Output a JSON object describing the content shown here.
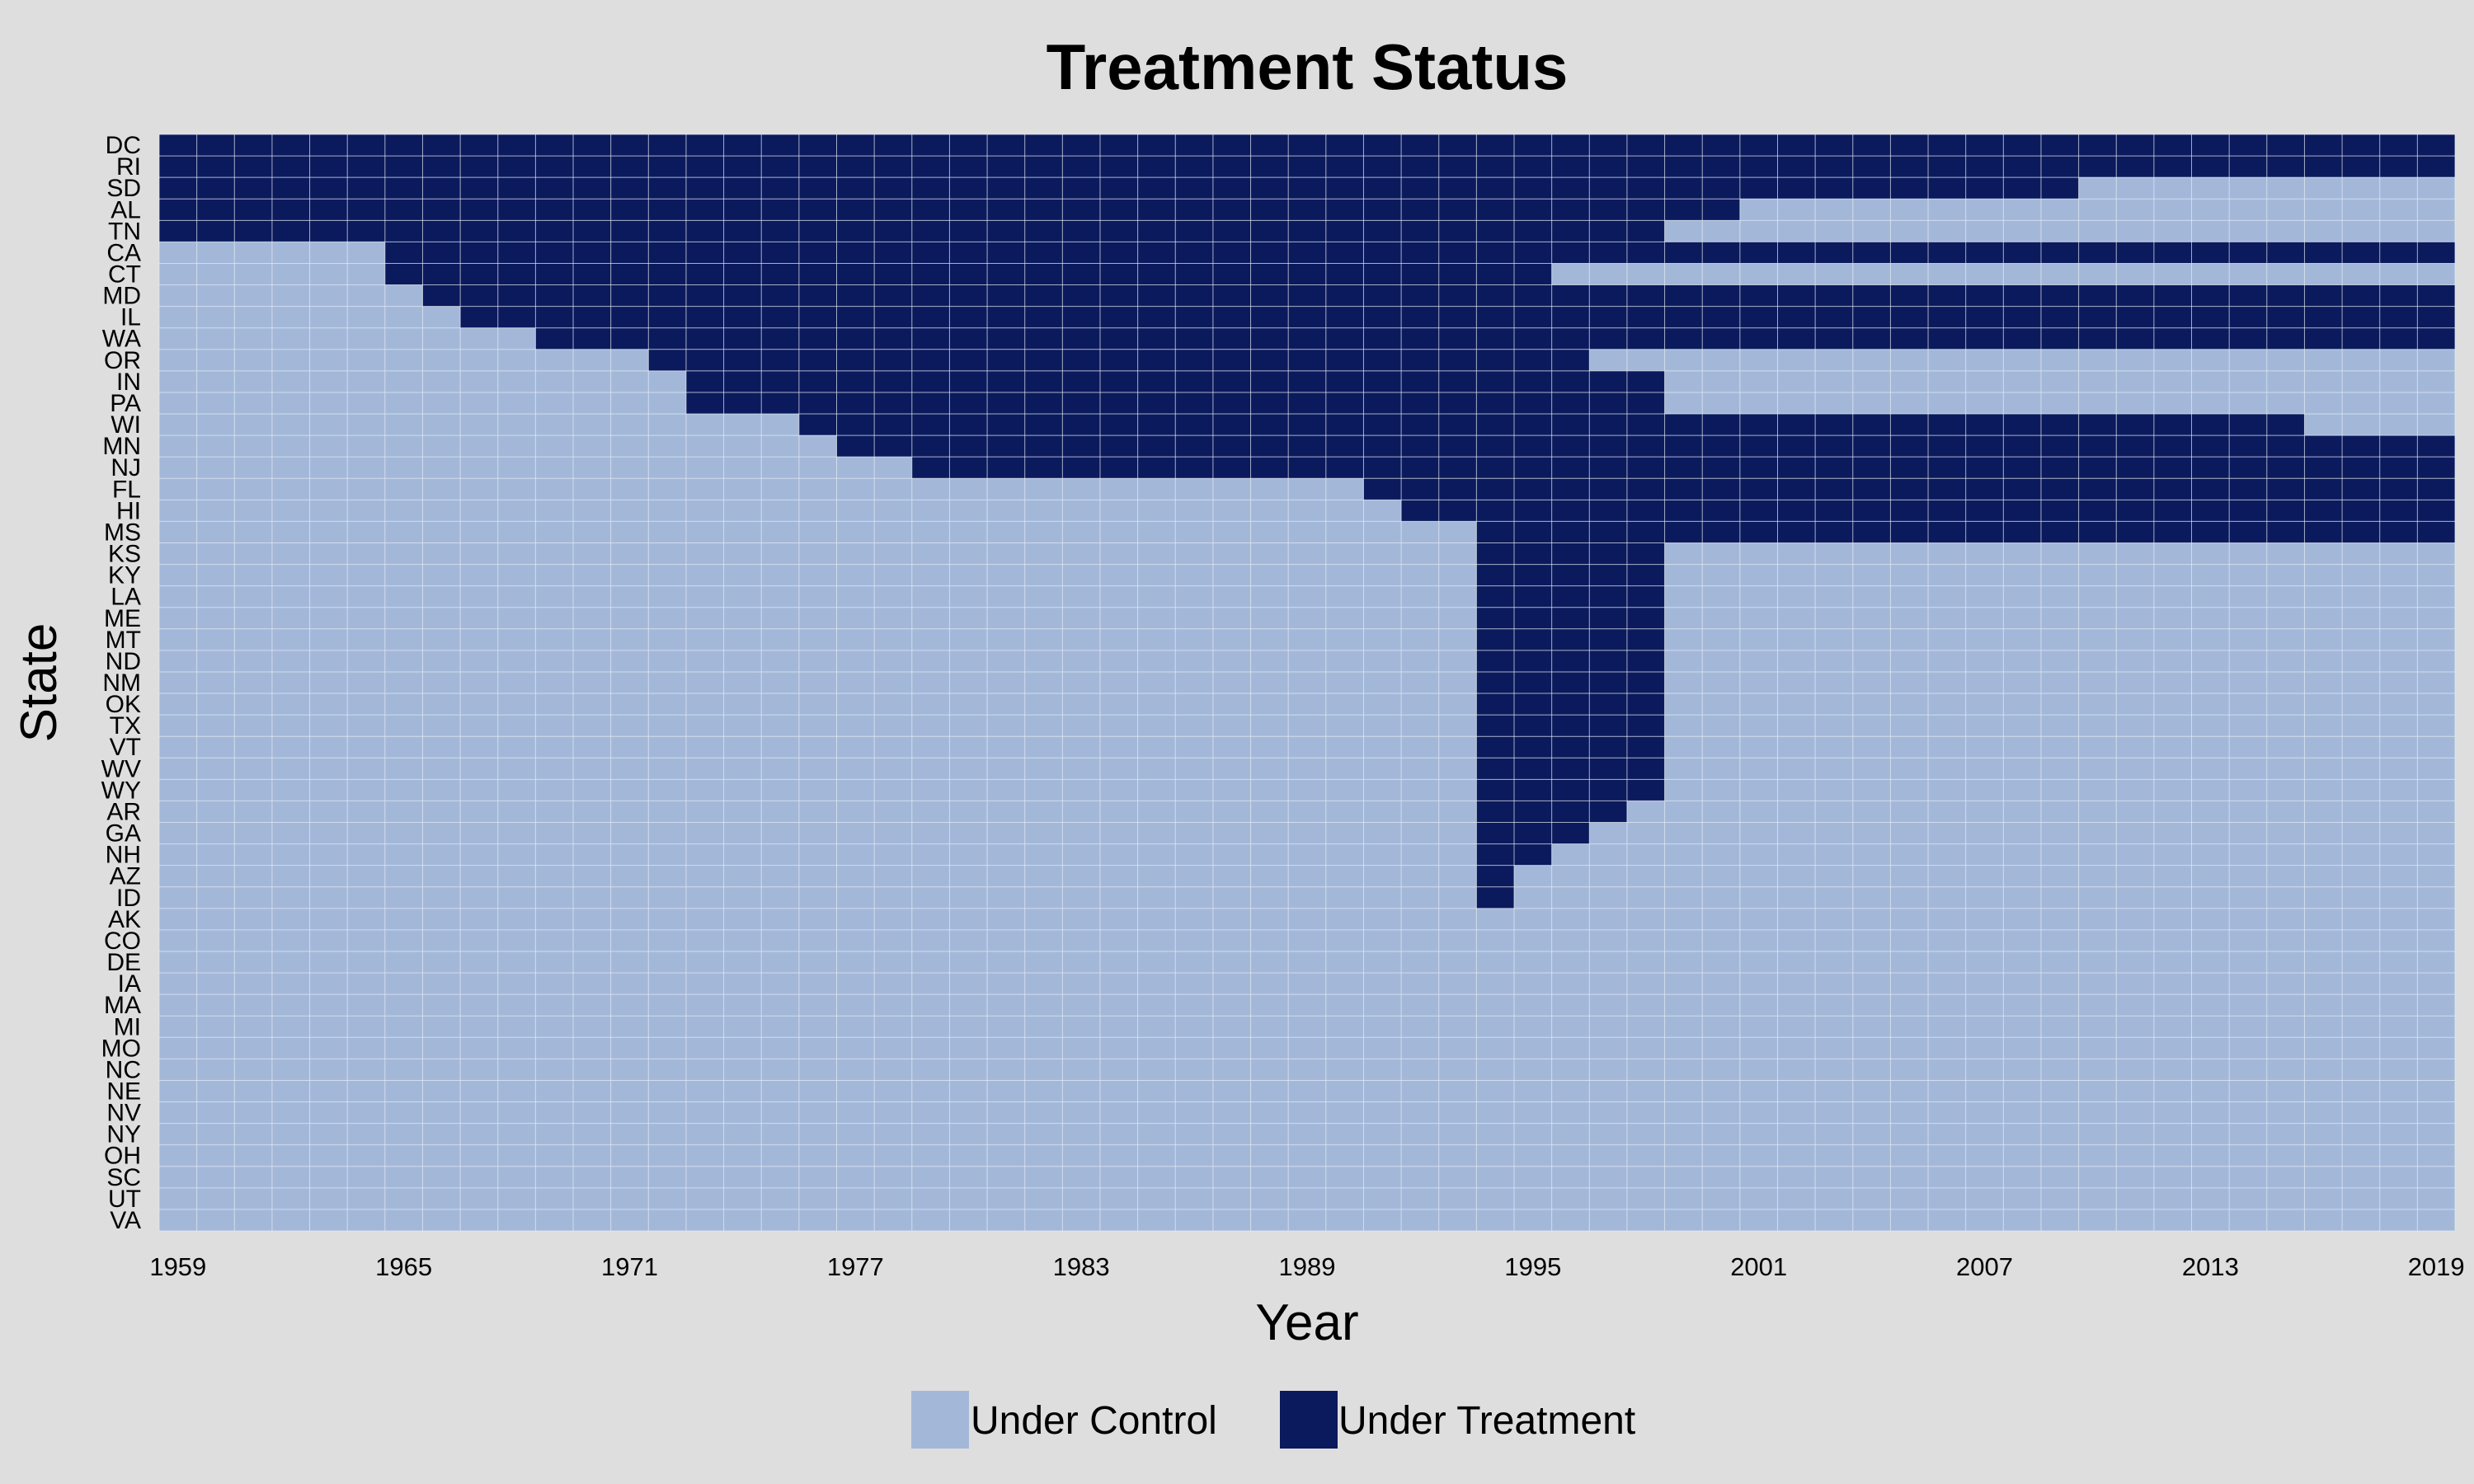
{
  "colors": {
    "background": "#dedede",
    "control": "#a3b8d9",
    "treatment": "#0b1a5c",
    "grid": "#e6ebf3",
    "text": "#000000"
  },
  "chart_data": {
    "type": "heatmap",
    "title": "Treatment Status",
    "xlabel": "Year",
    "ylabel": "State",
    "x_range": [
      1959,
      2019
    ],
    "x_ticks": [
      "1959",
      "1965",
      "1971",
      "1977",
      "1983",
      "1989",
      "1995",
      "2001",
      "2007",
      "2013",
      "2019"
    ],
    "states": [
      "DC",
      "RI",
      "SD",
      "AL",
      "TN",
      "CA",
      "CT",
      "MD",
      "IL",
      "WA",
      "OR",
      "IN",
      "PA",
      "WI",
      "MN",
      "NJ",
      "FL",
      "HI",
      "MS",
      "KS",
      "KY",
      "LA",
      "ME",
      "MT",
      "ND",
      "NM",
      "OK",
      "TX",
      "VT",
      "WV",
      "WY",
      "AR",
      "GA",
      "NH",
      "AZ",
      "ID",
      "AK",
      "CO",
      "DE",
      "IA",
      "MA",
      "MI",
      "MO",
      "NC",
      "NE",
      "NV",
      "NY",
      "OH",
      "SC",
      "UT",
      "VA"
    ],
    "treated_intervals": {
      "DC": [
        [
          1959,
          2019
        ]
      ],
      "RI": [
        [
          1959,
          2019
        ]
      ],
      "SD": [
        [
          1959,
          2009
        ]
      ],
      "AL": [
        [
          1959,
          2000
        ]
      ],
      "TN": [
        [
          1959,
          1998
        ]
      ],
      "CA": [
        [
          1965,
          2019
        ]
      ],
      "CT": [
        [
          1965,
          1995
        ]
      ],
      "MD": [
        [
          1966,
          2019
        ]
      ],
      "IL": [
        [
          1967,
          2019
        ]
      ],
      "WA": [
        [
          1969,
          2019
        ]
      ],
      "OR": [
        [
          1972,
          1996
        ]
      ],
      "IN": [
        [
          1973,
          1998
        ]
      ],
      "PA": [
        [
          1973,
          1998
        ]
      ],
      "WI": [
        [
          1976,
          2015
        ]
      ],
      "MN": [
        [
          1977,
          2019
        ]
      ],
      "NJ": [
        [
          1979,
          2019
        ]
      ],
      "FL": [
        [
          1991,
          2019
        ]
      ],
      "HI": [
        [
          1992,
          2019
        ]
      ],
      "MS": [
        [
          1994,
          2019
        ]
      ],
      "KS": [
        [
          1994,
          1998
        ]
      ],
      "KY": [
        [
          1994,
          1998
        ]
      ],
      "LA": [
        [
          1994,
          1998
        ]
      ],
      "ME": [
        [
          1994,
          1998
        ]
      ],
      "MT": [
        [
          1994,
          1998
        ]
      ],
      "ND": [
        [
          1994,
          1998
        ]
      ],
      "NM": [
        [
          1994,
          1998
        ]
      ],
      "OK": [
        [
          1994,
          1998
        ]
      ],
      "TX": [
        [
          1994,
          1998
        ]
      ],
      "VT": [
        [
          1994,
          1998
        ]
      ],
      "WV": [
        [
          1994,
          1998
        ]
      ],
      "WY": [
        [
          1994,
          1998
        ]
      ],
      "AR": [
        [
          1994,
          1997
        ]
      ],
      "GA": [
        [
          1994,
          1996
        ]
      ],
      "NH": [
        [
          1994,
          1995
        ]
      ],
      "AZ": [
        [
          1994,
          1994
        ]
      ],
      "ID": [
        [
          1994,
          1994
        ]
      ],
      "AK": [],
      "CO": [],
      "DE": [],
      "IA": [],
      "MA": [],
      "MI": [],
      "MO": [],
      "NC": [],
      "NE": [],
      "NV": [],
      "NY": [],
      "OH": [],
      "SC": [],
      "UT": [],
      "VA": []
    },
    "legend": {
      "position": "bottom",
      "items": [
        {
          "label": "Under Control",
          "color": "#a3b8d9"
        },
        {
          "label": "Under Treatment",
          "color": "#0b1a5c"
        }
      ]
    },
    "grid": true
  }
}
